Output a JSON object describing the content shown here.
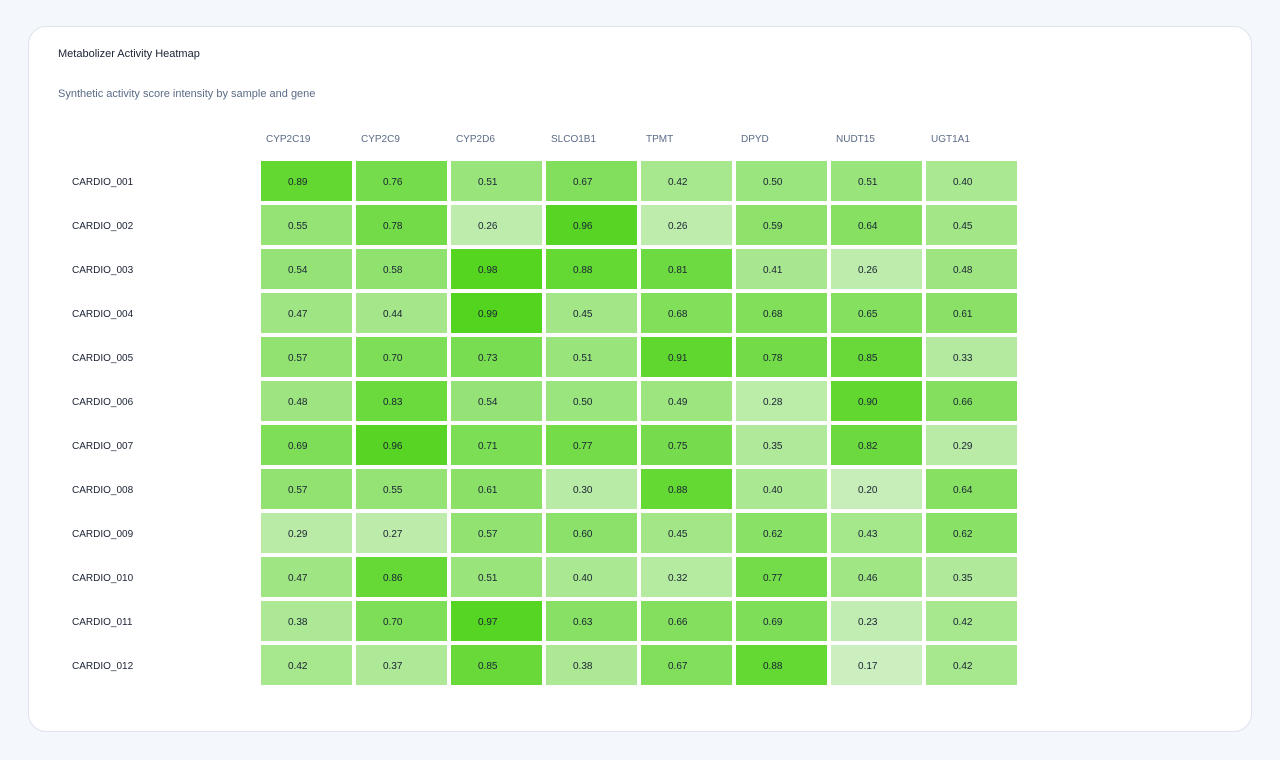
{
  "chart_data": {
    "type": "heatmap",
    "title": "Metabolizer Activity Heatmap",
    "subtitle": "Synthetic activity score intensity by sample and gene",
    "columns": [
      "CYP2C19",
      "CYP2C9",
      "CYP2D6",
      "SLCO1B1",
      "TPMT",
      "DPYD",
      "NUDT15",
      "UGT1A1"
    ],
    "rows": [
      "CARDIO_001",
      "CARDIO_002",
      "CARDIO_003",
      "CARDIO_004",
      "CARDIO_005",
      "CARDIO_006",
      "CARDIO_007",
      "CARDIO_008",
      "CARDIO_009",
      "CARDIO_010",
      "CARDIO_011",
      "CARDIO_012"
    ],
    "values": [
      [
        0.89,
        0.76,
        0.51,
        0.67,
        0.42,
        0.5,
        0.51,
        0.4
      ],
      [
        0.55,
        0.78,
        0.26,
        0.96,
        0.26,
        0.59,
        0.64,
        0.45
      ],
      [
        0.54,
        0.58,
        0.98,
        0.88,
        0.81,
        0.41,
        0.26,
        0.48
      ],
      [
        0.47,
        0.44,
        0.99,
        0.45,
        0.68,
        0.68,
        0.65,
        0.61
      ],
      [
        0.57,
        0.7,
        0.73,
        0.51,
        0.91,
        0.78,
        0.85,
        0.33
      ],
      [
        0.48,
        0.83,
        0.54,
        0.5,
        0.49,
        0.28,
        0.9,
        0.66
      ],
      [
        0.69,
        0.96,
        0.71,
        0.77,
        0.75,
        0.35,
        0.82,
        0.29
      ],
      [
        0.57,
        0.55,
        0.61,
        0.3,
        0.88,
        0.4,
        0.2,
        0.64
      ],
      [
        0.29,
        0.27,
        0.57,
        0.6,
        0.45,
        0.62,
        0.43,
        0.62
      ],
      [
        0.47,
        0.86,
        0.51,
        0.4,
        0.32,
        0.77,
        0.46,
        0.35
      ],
      [
        0.38,
        0.7,
        0.97,
        0.63,
        0.66,
        0.69,
        0.23,
        0.42
      ],
      [
        0.42,
        0.37,
        0.85,
        0.38,
        0.67,
        0.88,
        0.17,
        0.42
      ]
    ],
    "color_scale": {
      "low": "#e4f5df",
      "high": "#52d41c"
    },
    "legend": "none",
    "grid": false
  }
}
